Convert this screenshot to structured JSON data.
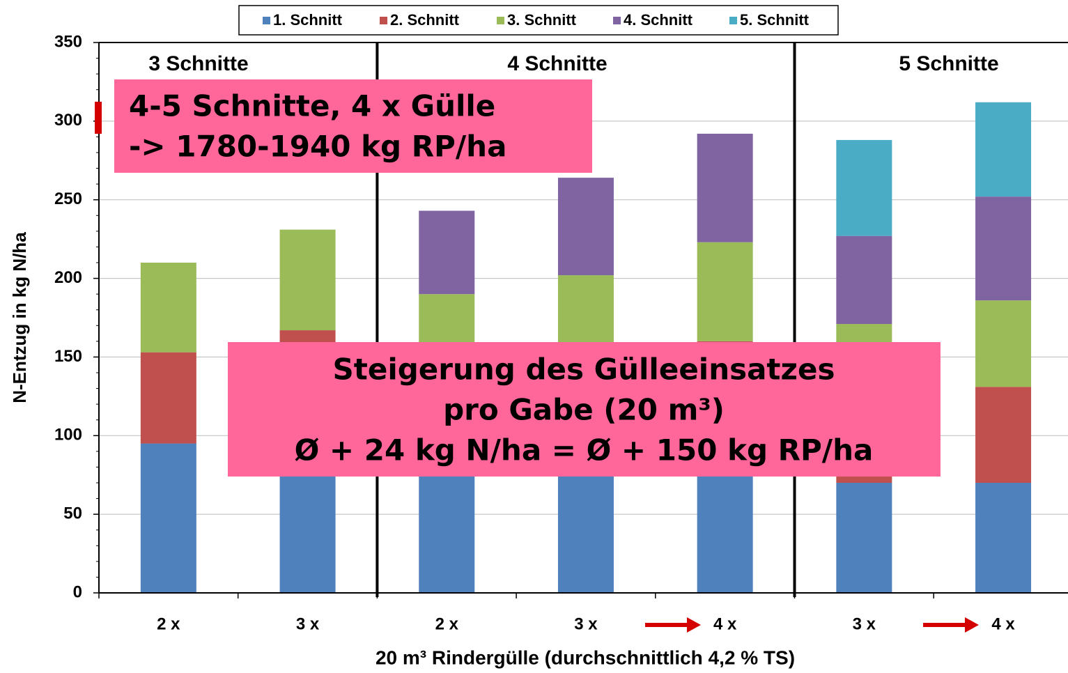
{
  "chart_data": {
    "type": "stacked_bar",
    "categories": [
      "2 x",
      "3 x",
      "2 x",
      "3 x",
      "4 x",
      "3 x",
      "4 x"
    ],
    "group_labels": [
      "3 Schnitte",
      "4 Schnitte",
      "5 Schnitte"
    ],
    "series": [
      {
        "name": "1. Schnitt",
        "color": "#4f81bd",
        "values": [
          95,
          105,
          95,
          100,
          105,
          70,
          70
        ]
      },
      {
        "name": "2. Schnitt",
        "color": "#c0504d",
        "values": [
          58,
          62,
          50,
          52,
          55,
          55,
          61
        ]
      },
      {
        "name": "3. Schnitt",
        "color": "#9bbb59",
        "values": [
          57,
          64,
          45,
          50,
          63,
          46,
          55
        ]
      },
      {
        "name": "4. Schnitt",
        "color": "#8064a2",
        "values": [
          null,
          null,
          53,
          62,
          69,
          56,
          66
        ]
      },
      {
        "name": "5. Schnitt",
        "color": "#4bacc6",
        "values": [
          null,
          null,
          null,
          null,
          null,
          61,
          60
        ]
      }
    ],
    "ylim": [
      0,
      350
    ],
    "yticks": [
      0,
      50,
      100,
      150,
      200,
      250,
      300,
      350
    ],
    "grid": true,
    "y_label": "N-Entzug in kg N/ha",
    "x_label": "20 m³ Rindergülle (durchschnittlich 4,2 % TS)",
    "annotations": [
      {
        "lines": [
          "4-5 Schnitte, 4 x Gülle",
          "-> 1780-1940 kg RP/ha"
        ]
      },
      {
        "lines": [
          "Steigerung des Gülleeinsatzes",
          "pro Gabe (20 m³)",
          "Ø + 24 kg N/ha = Ø + 150 kg RP/ha"
        ]
      }
    ]
  }
}
